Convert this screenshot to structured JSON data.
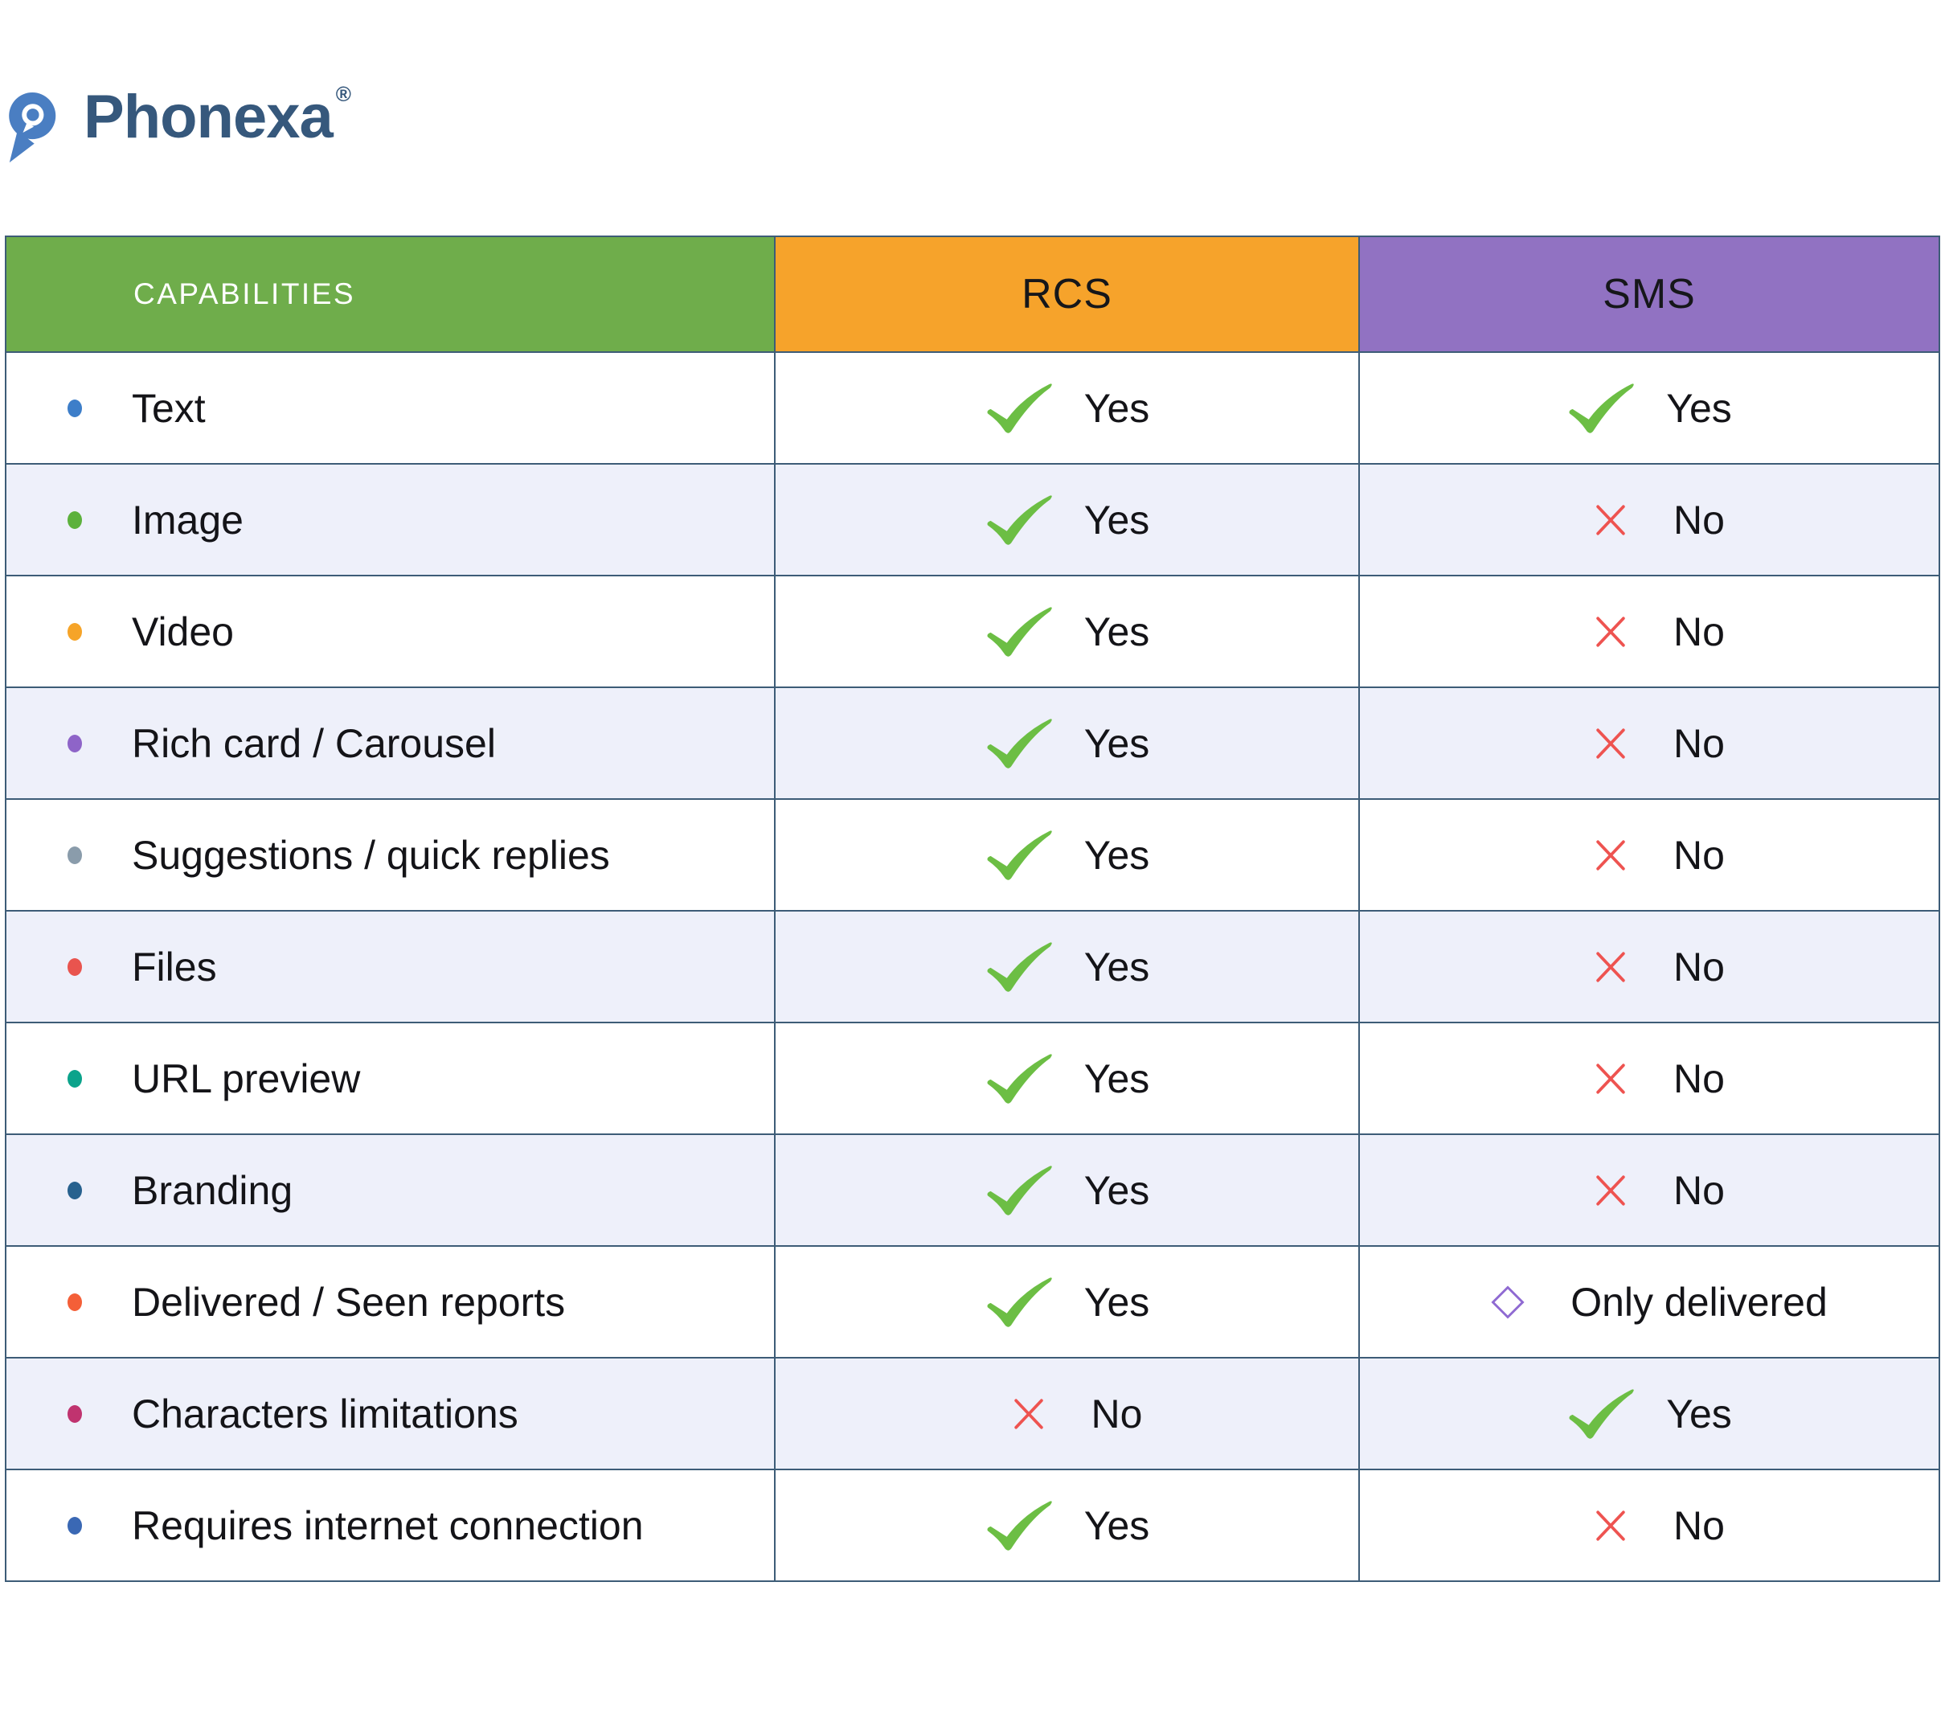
{
  "logo": {
    "brand": "Phonexa",
    "registered_mark": "®",
    "icon_color": "#4a7ec2",
    "text_color": "#36587c"
  },
  "header": {
    "columns": [
      {
        "id": "capabilities",
        "label": "CAPABILITIES",
        "bg": "#6fad4b",
        "text_color": "#ffffff"
      },
      {
        "id": "rcs",
        "label": "RCS",
        "bg": "#f6a32b",
        "text_color": "#16171a"
      },
      {
        "id": "sms",
        "label": "SMS",
        "bg": "#9172c2",
        "text_color": "#16171a"
      }
    ]
  },
  "icons": {
    "check_color": "#6cbe44",
    "cross_color": "#ee5350",
    "diamond_color": "#8f6ad2"
  },
  "style": {
    "border_color": "#3d5c77",
    "row_bg": "#ffffff",
    "row_alt_bg": "#eef0fa",
    "page_bg": "#ffffff",
    "body_text_color": "#141418"
  },
  "table": {
    "rows": [
      {
        "label": "Text",
        "bullet_color": "#3d7ec9",
        "rcs": {
          "icon": "check-icon",
          "text": "Yes"
        },
        "sms": {
          "icon": "check-icon",
          "text": "Yes"
        }
      },
      {
        "label": "Image",
        "bullet_color": "#5cb13c",
        "rcs": {
          "icon": "check-icon",
          "text": "Yes"
        },
        "sms": {
          "icon": "cross-icon",
          "text": "No"
        }
      },
      {
        "label": "Video",
        "bullet_color": "#f6a428",
        "rcs": {
          "icon": "check-icon",
          "text": "Yes"
        },
        "sms": {
          "icon": "cross-icon",
          "text": "No"
        }
      },
      {
        "label": "Rich card / Carousel",
        "bullet_color": "#8e64c8",
        "rcs": {
          "icon": "check-icon",
          "text": "Yes"
        },
        "sms": {
          "icon": "cross-icon",
          "text": "No"
        }
      },
      {
        "label": "Suggestions / quick replies",
        "bullet_color": "#8a9cab",
        "rcs": {
          "icon": "check-icon",
          "text": "Yes"
        },
        "sms": {
          "icon": "cross-icon",
          "text": "No"
        }
      },
      {
        "label": "Files",
        "bullet_color": "#e9544e",
        "rcs": {
          "icon": "check-icon",
          "text": "Yes"
        },
        "sms": {
          "icon": "cross-icon",
          "text": "No"
        }
      },
      {
        "label": "URL preview",
        "bullet_color": "#0ba38b",
        "rcs": {
          "icon": "check-icon",
          "text": "Yes"
        },
        "sms": {
          "icon": "cross-icon",
          "text": "No"
        }
      },
      {
        "label": "Branding",
        "bullet_color": "#27618e",
        "rcs": {
          "icon": "check-icon",
          "text": "Yes"
        },
        "sms": {
          "icon": "cross-icon",
          "text": "No"
        }
      },
      {
        "label": "Delivered / Seen reports",
        "bullet_color": "#f45f38",
        "rcs": {
          "icon": "check-icon",
          "text": "Yes"
        },
        "sms": {
          "icon": "diamond-icon",
          "text": "Only delivered"
        }
      },
      {
        "label": "Characters limitations",
        "bullet_color": "#c0336f",
        "rcs": {
          "icon": "cross-icon",
          "text": "No"
        },
        "sms": {
          "icon": "check-icon",
          "text": "Yes"
        }
      },
      {
        "label": "Requires internet connection",
        "bullet_color": "#3a68b4",
        "rcs": {
          "icon": "check-icon",
          "text": "Yes"
        },
        "sms": {
          "icon": "cross-icon",
          "text": "No"
        }
      }
    ]
  }
}
